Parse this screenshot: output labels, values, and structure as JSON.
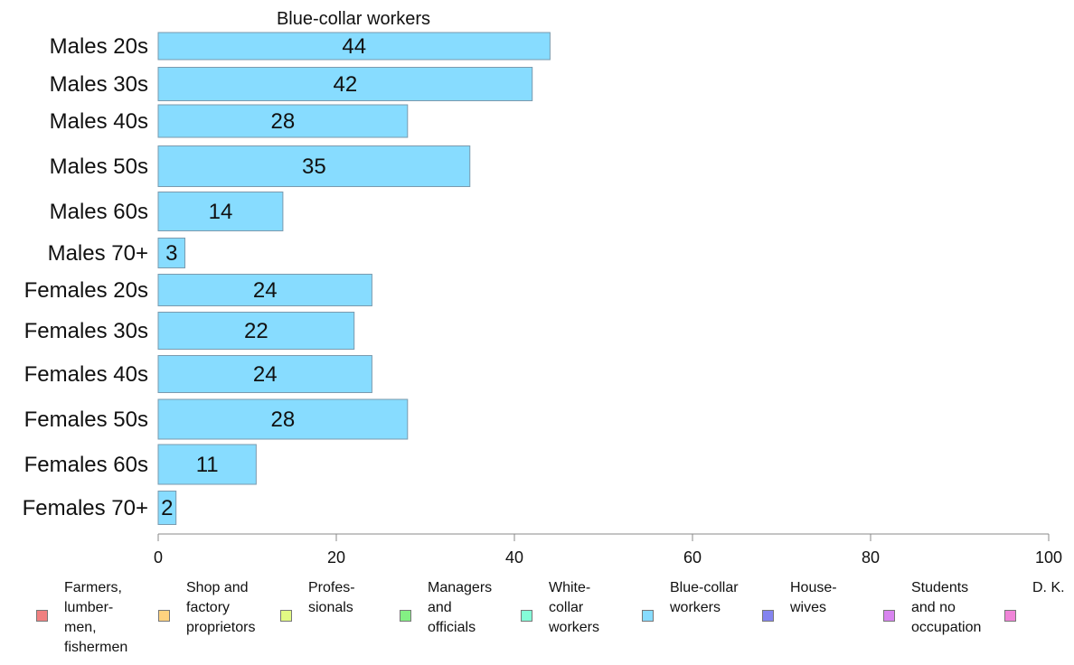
{
  "chart_data": {
    "type": "bar",
    "orientation": "horizontal",
    "title": "Blue-collar workers",
    "categories": [
      "Males 20s",
      "Males 30s",
      "Males 40s",
      "Males 50s",
      "Males 60s",
      "Males 70+",
      "Females 20s",
      "Females 30s",
      "Females 40s",
      "Females 50s",
      "Females 60s",
      "Females 70+"
    ],
    "series": [
      {
        "name": "Blue-collar workers",
        "values": [
          44,
          42,
          28,
          35,
          14,
          3,
          24,
          22,
          24,
          28,
          11,
          2
        ],
        "color": "#87dcff"
      }
    ],
    "data_labels": [
      "44",
      "42",
      "28",
      "35",
      "14",
      "3",
      "24",
      "22",
      "24",
      "28",
      "11",
      "2"
    ],
    "xlim": [
      0,
      100
    ],
    "xticks": [
      0,
      20,
      40,
      60,
      80,
      100
    ],
    "xlabel": "",
    "ylabel": "",
    "grid": false,
    "legend_position": "bottom",
    "legend": [
      {
        "label": "Farmers,\nlumber-\nmen,\nfishermen",
        "color": "#f08080"
      },
      {
        "label": "Shop and\nfactory\nproprietors",
        "color": "#ffd27f"
      },
      {
        "label": "Profes-\nsionals",
        "color": "#e2fa84"
      },
      {
        "label": "Managers\nand\nofficials",
        "color": "#84f084"
      },
      {
        "label": "White-\ncollar\nworkers",
        "color": "#84fcd8"
      },
      {
        "label": "Blue-collar\nworkers",
        "color": "#87dcff"
      },
      {
        "label": "House-\nwives",
        "color": "#8484f0"
      },
      {
        "label": "Students\nand no\noccupation",
        "color": "#d884f0"
      },
      {
        "label": "D. K.",
        "color": "#f084d8"
      }
    ]
  }
}
